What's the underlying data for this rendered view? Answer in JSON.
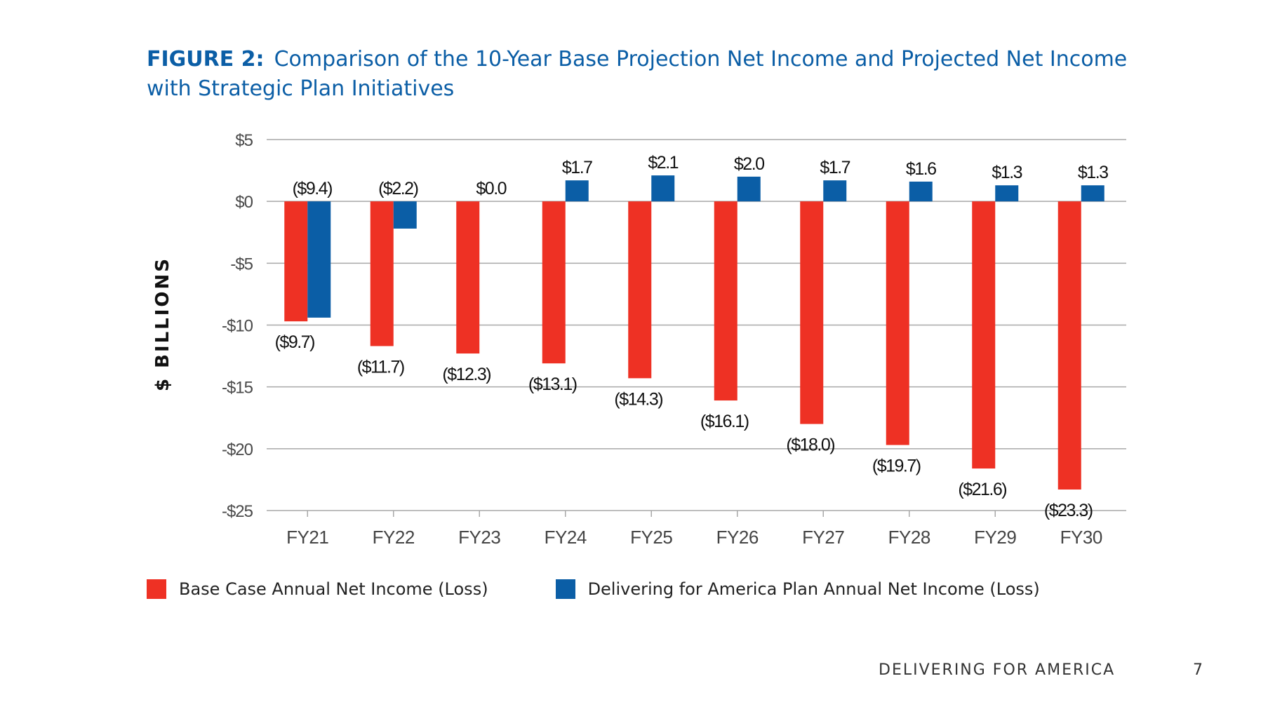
{
  "title": {
    "figure_label": "FIGURE 2:",
    "text": "Comparison of the 10-Year Base Projection Net Income and Projected Net Income with Strategic Plan Initiatives"
  },
  "colors": {
    "base": "#ee3124",
    "plan": "#0b5ea6",
    "title": "#0b5ea6"
  },
  "chart_data": {
    "type": "bar",
    "ylabel": "$ BILLIONS",
    "ylim": [
      -25,
      5
    ],
    "yticks": [
      5,
      0,
      -5,
      -10,
      -15,
      -20,
      -25
    ],
    "ytick_labels": [
      "$5",
      "$0",
      "-$5",
      "-$10",
      "-$15",
      "-$20",
      "-$25"
    ],
    "grid": true,
    "categories": [
      "FY21",
      "FY22",
      "FY23",
      "FY24",
      "FY25",
      "FY26",
      "FY27",
      "FY28",
      "FY29",
      "FY30"
    ],
    "series": [
      {
        "name": "Base Case Annual Net Income (Loss)",
        "values": [
          -9.7,
          -11.7,
          -12.3,
          -13.1,
          -14.3,
          -16.1,
          -18.0,
          -19.7,
          -21.6,
          -23.3
        ],
        "labels": [
          "($9.7)",
          "($11.7)",
          "($12.3)",
          "($13.1)",
          "($14.3)",
          "($16.1)",
          "($18.0)",
          "($19.7)",
          "($21.6)",
          "($23.3)"
        ]
      },
      {
        "name": "Delivering for America Plan Annual Net Income (Loss)",
        "values": [
          -9.4,
          -2.2,
          0.0,
          1.7,
          2.1,
          2.0,
          1.7,
          1.6,
          1.3,
          1.3
        ],
        "labels": [
          "($9.4)",
          "($2.2)",
          "$0.0",
          "$1.7",
          "$2.1",
          "$2.0",
          "$1.7",
          "$1.6",
          "$1.3",
          "$1.3"
        ]
      }
    ],
    "legend_position": "bottom-left"
  },
  "footer": {
    "text": "DELIVERING FOR AMERICA",
    "page": "7"
  }
}
